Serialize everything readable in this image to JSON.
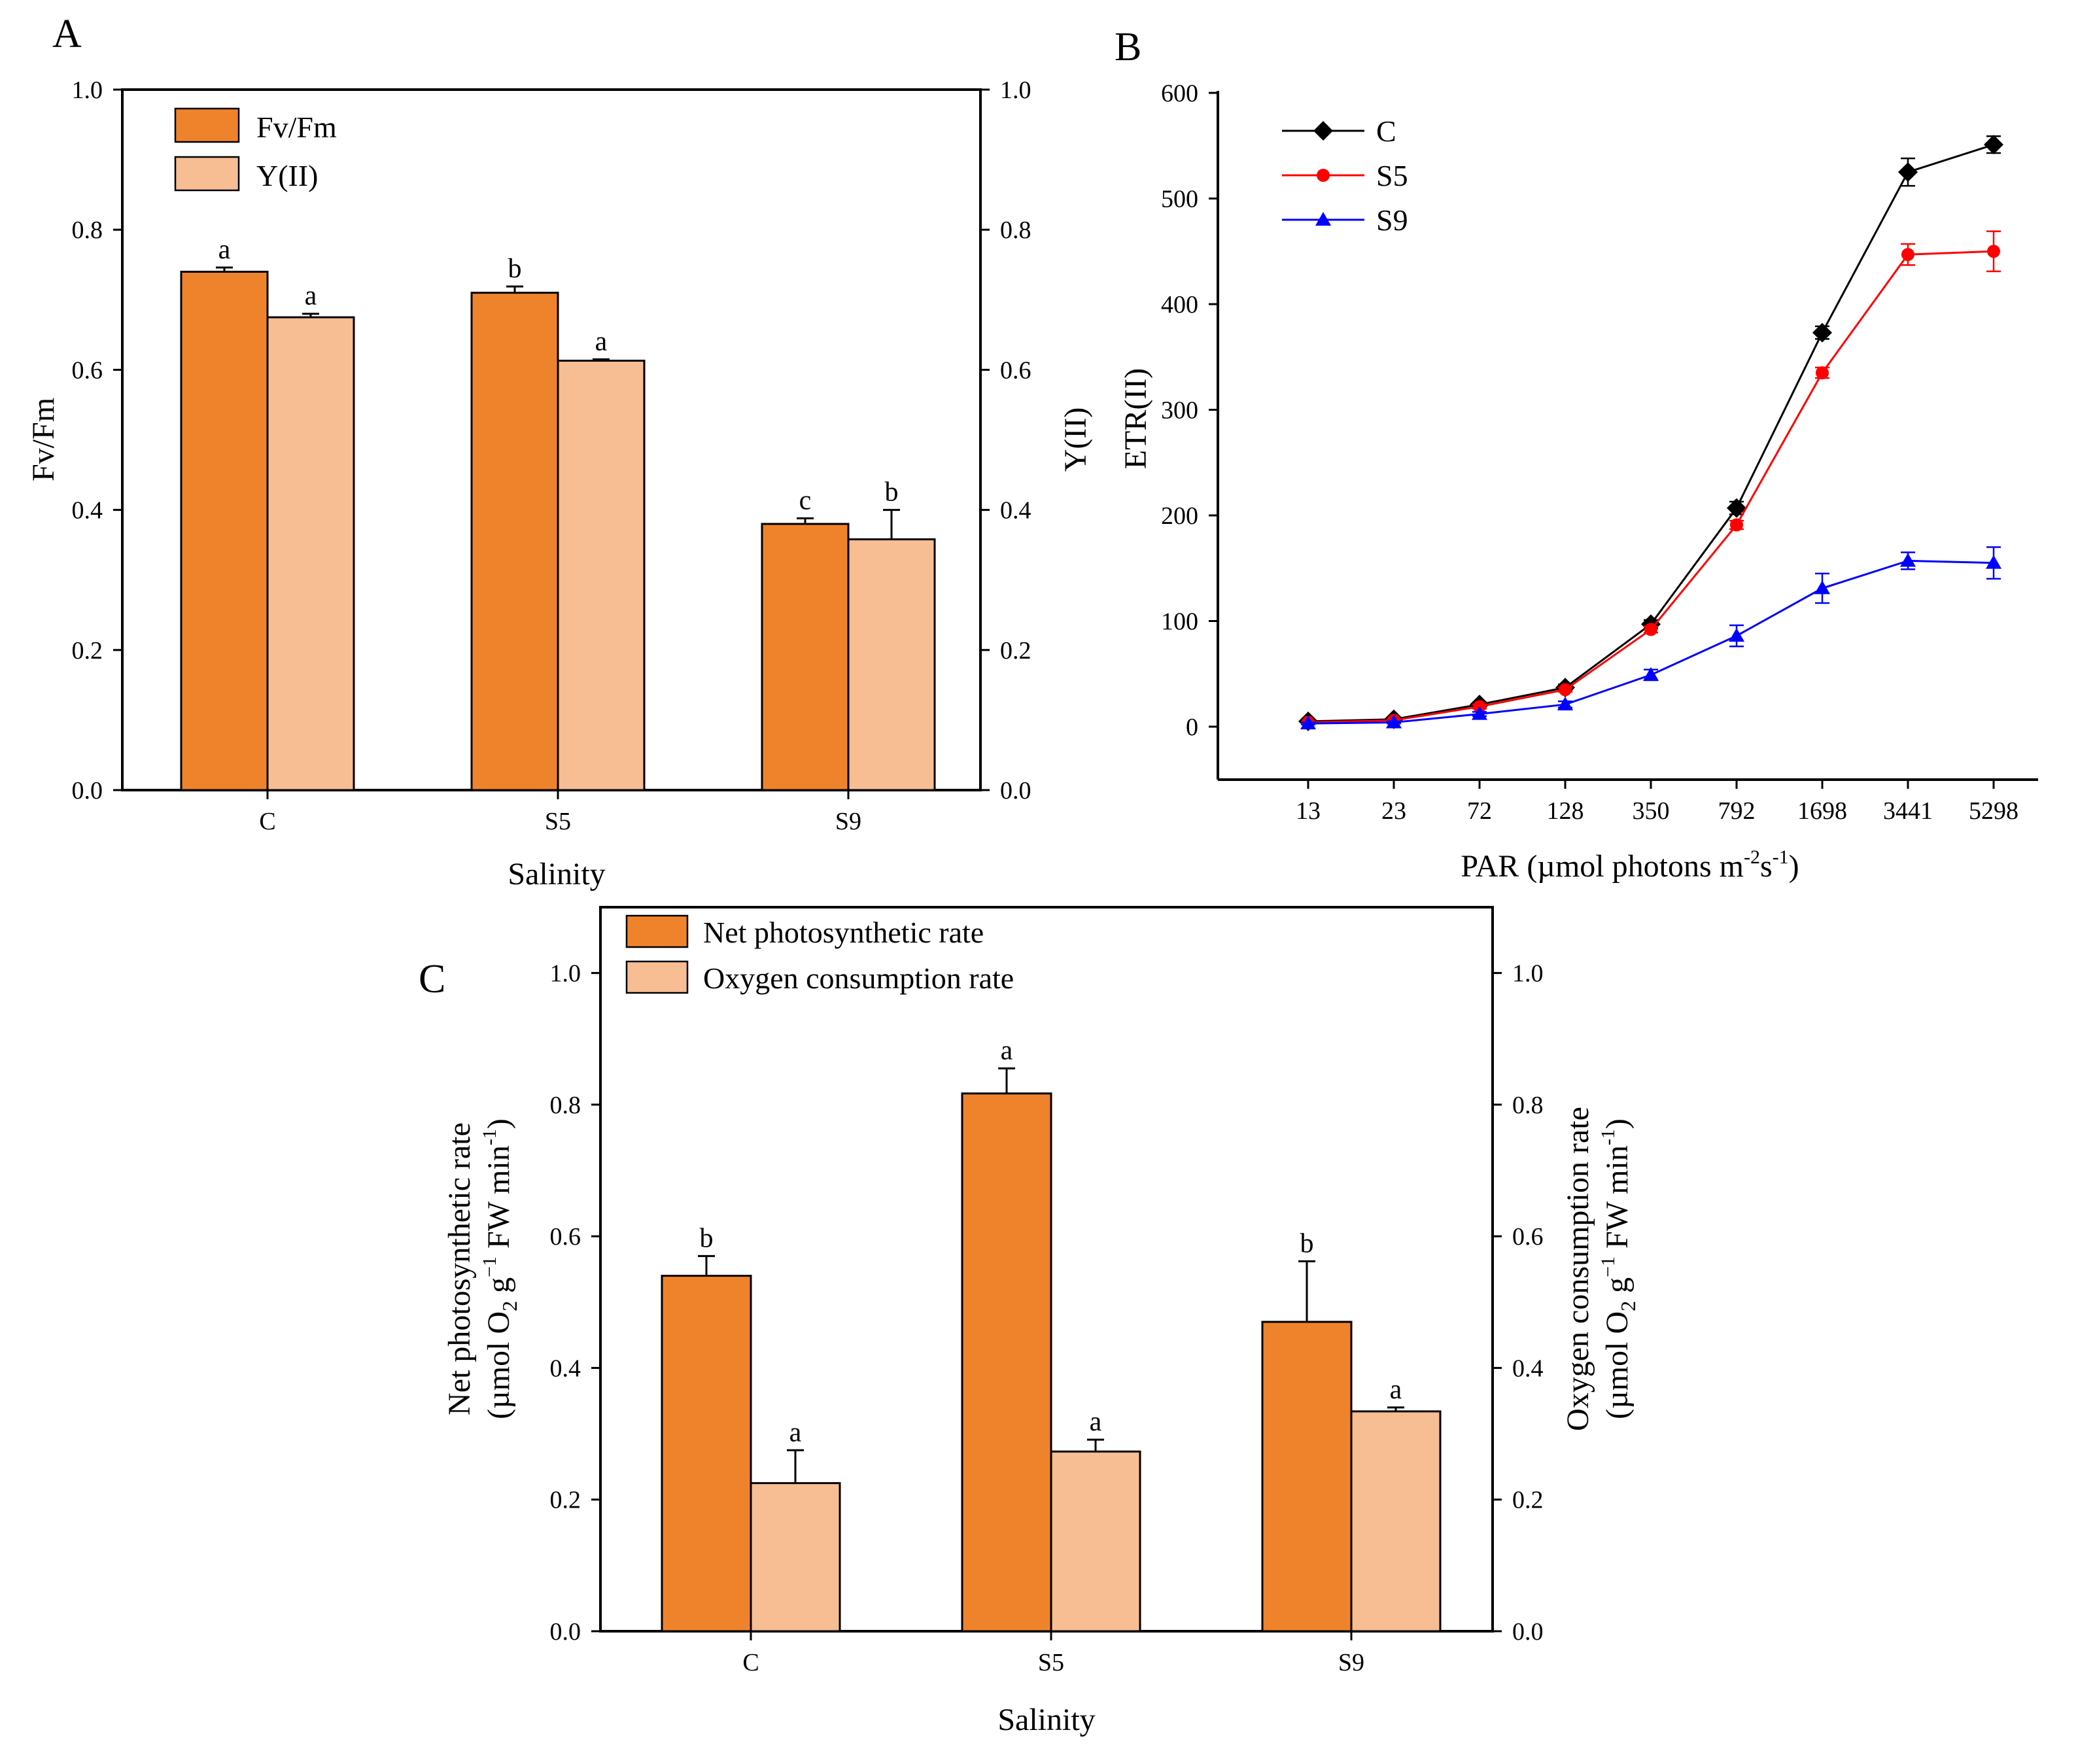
{
  "panels": [
    {
      "label": "A"
    },
    {
      "label": "B"
    },
    {
      "label": "C"
    }
  ],
  "chart_data": [
    {
      "panel": "A",
      "type": "bar",
      "categories": [
        "C",
        "S5",
        "S9"
      ],
      "xlabel": "Salinity",
      "ylabel": "Fv/Fm",
      "ylabel_right": "Y(II)",
      "ylim": [
        0,
        1.0
      ],
      "yticks": [
        "0.0",
        "0.2",
        "0.4",
        "0.6",
        "0.8",
        "1.0"
      ],
      "legend_position": "top-left",
      "series": [
        {
          "name": "Fv/Fm",
          "color": "#ef832b",
          "values": [
            0.74,
            0.71,
            0.38
          ],
          "errors": [
            0.006,
            0.009,
            0.008
          ],
          "labels": [
            "a",
            "b",
            "c"
          ]
        },
        {
          "name": "Y(II)",
          "color": "#f7bd93",
          "values": [
            0.675,
            0.613,
            0.358
          ],
          "errors": [
            0.005,
            0.002,
            0.042
          ],
          "labels": [
            "a",
            "a",
            "b"
          ]
        }
      ]
    },
    {
      "panel": "B",
      "type": "line",
      "categories": [
        "13",
        "23",
        "72",
        "128",
        "350",
        "792",
        "1698",
        "3441",
        "5298"
      ],
      "xlabel": "PAR (µmol photons m",
      "xlabel_sup1": "-2",
      "xlabel_mid": "s",
      "xlabel_sup2": "-1",
      "xlabel_end": ")",
      "ylabel": "ETR(II)",
      "ylim": [
        -50,
        600
      ],
      "yticks": [
        "0",
        "100",
        "200",
        "300",
        "400",
        "500",
        "600"
      ],
      "legend_position": "top-left",
      "series": [
        {
          "name": "C",
          "color": "#000000",
          "marker": "diamond",
          "values": [
            5,
            7,
            21,
            37,
            97,
            207,
            373,
            525,
            551
          ],
          "errors": [
            1,
            1,
            2,
            3,
            4,
            6,
            6,
            13,
            8
          ]
        },
        {
          "name": "S5",
          "color": "#ff0000",
          "marker": "circle",
          "values": [
            4,
            6,
            19,
            35,
            92,
            191,
            335,
            447,
            450
          ],
          "errors": [
            1,
            1,
            2,
            2,
            3,
            4,
            5,
            10,
            19
          ]
        },
        {
          "name": "S9",
          "color": "#0000ff",
          "marker": "triangle",
          "values": [
            3,
            4,
            12,
            21,
            49,
            86,
            131,
            157,
            155
          ],
          "errors": [
            1,
            1,
            2,
            3,
            5,
            10,
            14,
            8,
            15
          ]
        }
      ]
    },
    {
      "panel": "C",
      "type": "bar",
      "categories": [
        "C",
        "S5",
        "S9"
      ],
      "xlabel": "Salinity",
      "ylabel_line1": "Net photosynthetic rate",
      "ylabel_line2": "(µmol O",
      "ylabel_sub": "2",
      "ylabel_mid": " g",
      "ylabel_sup1": "−1",
      "ylabel_mid2": " FW min",
      "ylabel_sup2": "-1",
      "ylabel_end": ")",
      "ylabel_right_line1": "Oxygen consumption rate",
      "ylabel_right_line2": "(µmol O",
      "ylabel_right_sub": "2",
      "ylabel_right_mid": " g",
      "ylabel_right_sup1": "−1",
      "ylabel_right_mid2": " FW min",
      "ylabel_right_sup2": "-1",
      "ylabel_right_end": ")",
      "ylim": [
        0,
        1.1
      ],
      "yticks": [
        "0.0",
        "0.2",
        "0.4",
        "0.6",
        "0.8",
        "1.0"
      ],
      "legend_position": "top-left",
      "series": [
        {
          "name": "Net photosynthetic rate",
          "color": "#ef832b",
          "values": [
            0.54,
            0.817,
            0.47
          ],
          "errors": [
            0.03,
            0.038,
            0.092
          ],
          "labels": [
            "b",
            "a",
            "b"
          ]
        },
        {
          "name": "Oxygen consumption rate",
          "color": "#f7bd93",
          "values": [
            0.225,
            0.273,
            0.334
          ],
          "errors": [
            0.05,
            0.018,
            0.006
          ],
          "labels": [
            "a",
            "a",
            "a"
          ]
        }
      ]
    }
  ]
}
